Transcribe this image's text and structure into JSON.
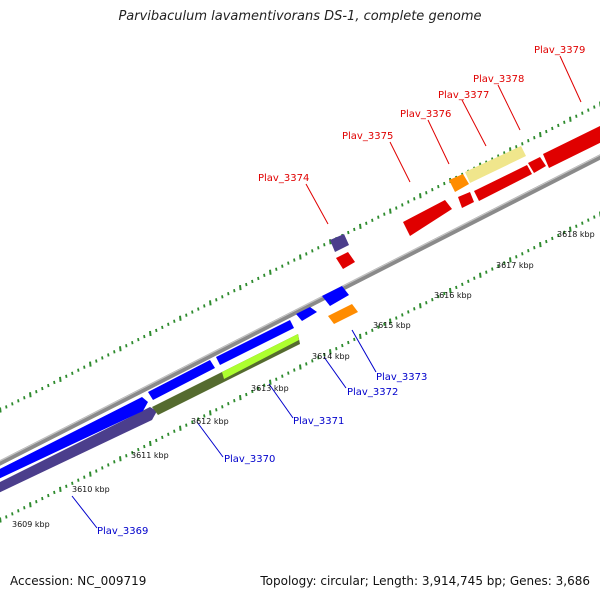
{
  "title": "Parvibaculum lavamentivorans DS-1, complete genome",
  "footer": {
    "accession": "Accession: NC_009719",
    "topology": "Topology: circular; Length: 3,914,745 bp; Genes: 3,686"
  },
  "colors": {
    "background": "#ffffff",
    "backbone": "#8a8a8a",
    "tick": "#2e8b2e",
    "forward_label": "#e00000",
    "reverse_label": "#0000cc"
  },
  "scale_ticks": [
    "3609 kbp",
    "3610 kbp",
    "3611 kbp",
    "3612 kbp",
    "3613 kbp",
    "3614 kbp",
    "3615 kbp",
    "3616 kbp",
    "3617 kbp",
    "3618 kbp"
  ],
  "genes_forward": [
    {
      "name": "Plav_3374",
      "color": "#4b3e8c"
    },
    {
      "name": "Plav_3375",
      "color": "#e00000"
    },
    {
      "name": "Plav_3376",
      "color": "#ff8c00"
    },
    {
      "name": "Plav_3377",
      "color": "#e00000"
    },
    {
      "name": "Plav_3378",
      "color": "#f0e68c"
    },
    {
      "name": "Plav_3379",
      "color": "#e00000"
    }
  ],
  "genes_reverse": [
    {
      "name": "Plav_3369",
      "color": "#4b3e8c"
    },
    {
      "name": "Plav_3370",
      "color": "#556b2f"
    },
    {
      "name": "Plav_3371",
      "color": "#0000ff"
    },
    {
      "name": "Plav_3372",
      "color": "#0000ff"
    },
    {
      "name": "Plav_3373",
      "color": "#ff8c00"
    }
  ]
}
